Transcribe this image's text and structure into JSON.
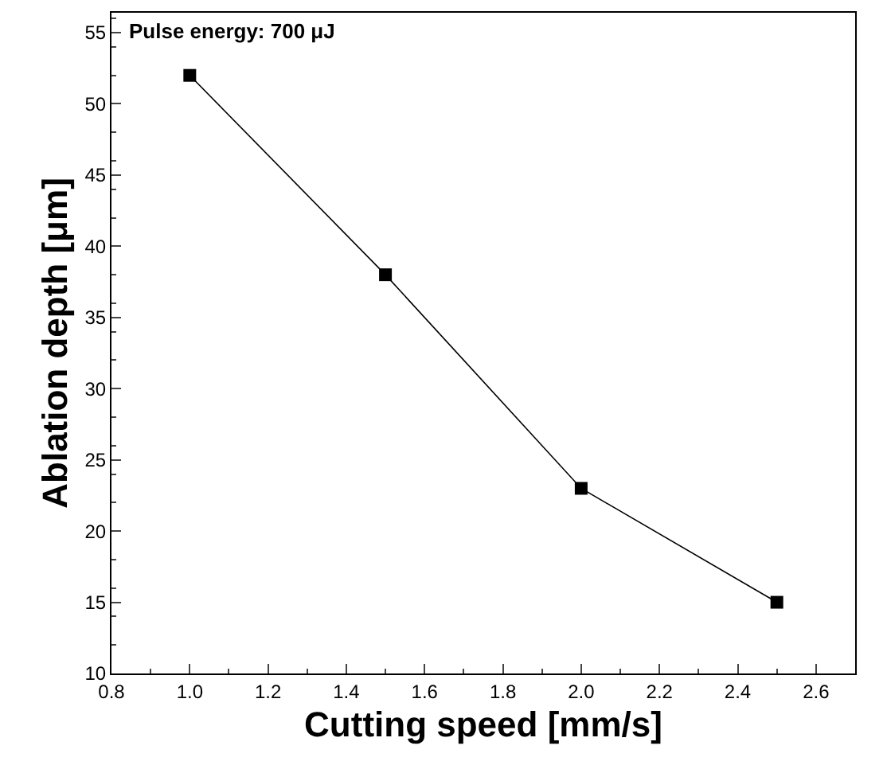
{
  "chart_data": {
    "type": "line",
    "xlabel": "Cutting speed [mm/s]",
    "ylabel": "Ablation depth [μm]",
    "annotations": [
      "Pulse energy: 700 μJ"
    ],
    "x": [
      1.0,
      1.5,
      2.0,
      2.5
    ],
    "series": [
      {
        "color": "#000000",
        "values": [
          52,
          38,
          23,
          15
        ]
      }
    ],
    "xlim": [
      0.8,
      2.7
    ],
    "xticks": [
      0.8,
      {
        "value": 1,
        "label": "1.0"
      },
      1.2,
      1.4,
      1.6,
      1.8,
      {
        "value": 2,
        "label": "2.0"
      },
      2.2,
      2.4,
      2.6
    ],
    "ylim": [
      10,
      56.4
    ],
    "yticks": [
      10,
      15,
      20,
      25,
      30,
      35,
      40,
      45,
      50,
      55
    ],
    "marker": "square",
    "line_style": "solid"
  }
}
